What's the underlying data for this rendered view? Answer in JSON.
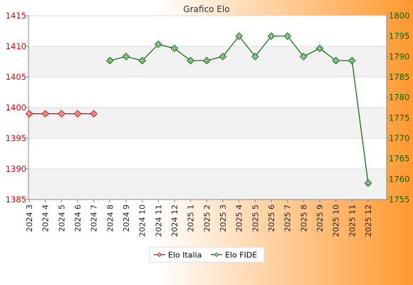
{
  "chart_data": {
    "type": "line",
    "title": "Grafico Elo",
    "categories": [
      "2024 3",
      "2024 4",
      "2024 5",
      "2024 6",
      "2024 7",
      "2024 8",
      "2024 9",
      "2024 10",
      "2024 11",
      "2024 12",
      "2025 1",
      "2025 2",
      "2025 3",
      "2025 4",
      "2025 5",
      "2025 6",
      "2025 7",
      "2025 8",
      "2025 9",
      "2025 10",
      "2025 11",
      "2025 12"
    ],
    "y_left": {
      "range": [
        1385,
        1415
      ],
      "ticks": [
        1385,
        1390,
        1395,
        1400,
        1405,
        1410,
        1415
      ],
      "color": "#dd0000"
    },
    "y_right": {
      "range": [
        1755,
        1800
      ],
      "ticks": [
        1755,
        1760,
        1765,
        1770,
        1775,
        1780,
        1785,
        1790,
        1795,
        1800
      ],
      "color": "#006600"
    },
    "series": [
      {
        "name": "Elo Italia",
        "axis": "left",
        "color": "#dd0000",
        "values": [
          1399,
          1399,
          1399,
          1399,
          1399,
          null,
          null,
          null,
          null,
          null,
          null,
          null,
          null,
          null,
          null,
          null,
          null,
          null,
          null,
          null,
          null,
          null
        ]
      },
      {
        "name": "Elo FIDE",
        "axis": "right",
        "color": "#006600",
        "values": [
          null,
          null,
          null,
          null,
          null,
          1789,
          1790,
          1789,
          1793,
          1792,
          1789,
          1789,
          1790,
          1795,
          1790,
          1795,
          1795,
          1790,
          1792,
          1789,
          1789,
          1759
        ]
      }
    ],
    "grid": true,
    "legend_position": "bottom-center",
    "background_colors": [
      "#ffffff",
      "#ff9930"
    ]
  }
}
